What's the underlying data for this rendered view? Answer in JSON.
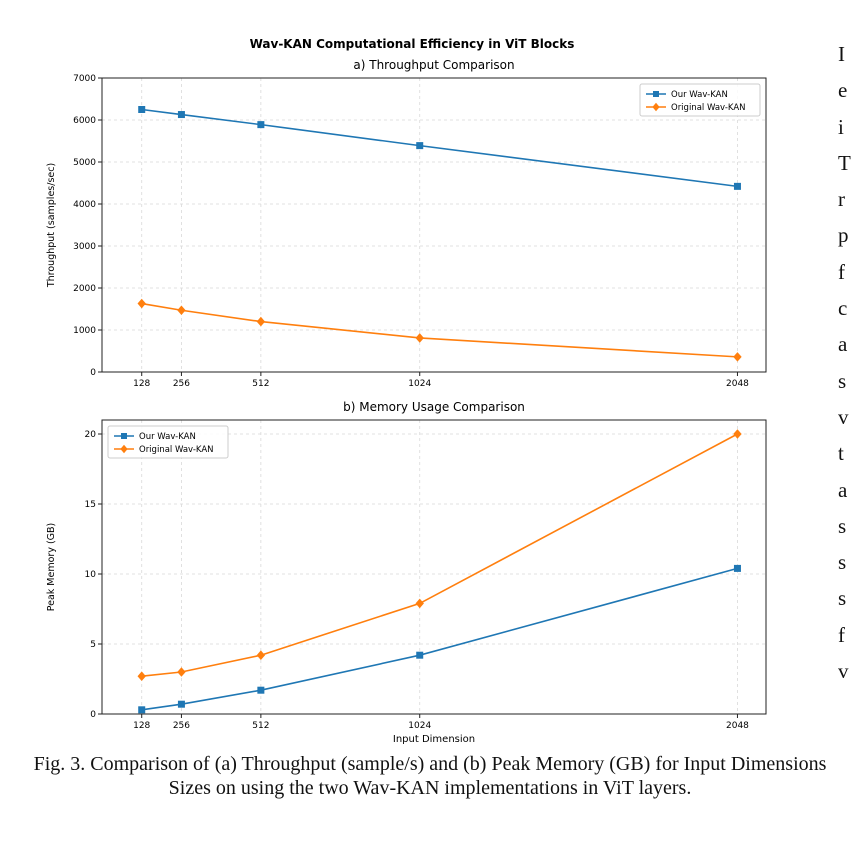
{
  "figure": {
    "suptitle": "Wav-KAN Computational Efficiency in ViT Blocks",
    "caption": "Fig. 3. Comparison of (a) Throughput (sample/s) and (b) Peak Memory (GB) for Input Dimensions Sizes on using the two Wav-KAN implementations in ViT layers."
  },
  "colors": {
    "our": "#1f77b4",
    "original": "#ff7f0e",
    "grid": "#d9d9d9"
  },
  "chart_data": [
    {
      "type": "line",
      "title": "a) Throughput Comparison",
      "xlabel": "",
      "ylabel": "Throughput (samples/sec)",
      "x": [
        128,
        256,
        512,
        1024,
        2048
      ],
      "xticks": [
        "128",
        "256",
        "512",
        "1024",
        "2048"
      ],
      "xlim": [
        0,
        2140
      ],
      "ylim": [
        0,
        7000
      ],
      "yticks": [
        0,
        1000,
        2000,
        3000,
        4000,
        5000,
        6000,
        7000
      ],
      "grid": true,
      "legend": "top-right",
      "series": [
        {
          "name": "Our Wav-KAN",
          "marker": "square",
          "values": [
            6250,
            6130,
            5890,
            5390,
            4420
          ]
        },
        {
          "name": "Original Wav-KAN",
          "marker": "diamond",
          "values": [
            1630,
            1470,
            1200,
            810,
            360
          ]
        }
      ]
    },
    {
      "type": "line",
      "title": "b) Memory Usage Comparison",
      "xlabel": "Input Dimension",
      "ylabel": "Peak Memory (GB)",
      "x": [
        128,
        256,
        512,
        1024,
        2048
      ],
      "xticks": [
        "128",
        "256",
        "512",
        "1024",
        "2048"
      ],
      "xlim": [
        0,
        2140
      ],
      "ylim": [
        0,
        21.0
      ],
      "yticks": [
        0,
        5,
        10,
        15,
        20
      ],
      "grid": true,
      "legend": "top-left",
      "series": [
        {
          "name": "Our Wav-KAN",
          "marker": "square",
          "values": [
            0.3,
            0.7,
            1.7,
            4.2,
            10.4
          ]
        },
        {
          "name": "Original Wav-KAN",
          "marker": "diamond",
          "values": [
            2.7,
            3.0,
            4.2,
            7.9,
            20.0
          ]
        }
      ]
    }
  ],
  "side_text": [
    "I",
    "e",
    "i",
    "T",
    "r",
    "p",
    "f",
    "c",
    "a",
    "s",
    "v",
    "t",
    "a",
    "s",
    "s",
    "s",
    "f",
    "v"
  ]
}
